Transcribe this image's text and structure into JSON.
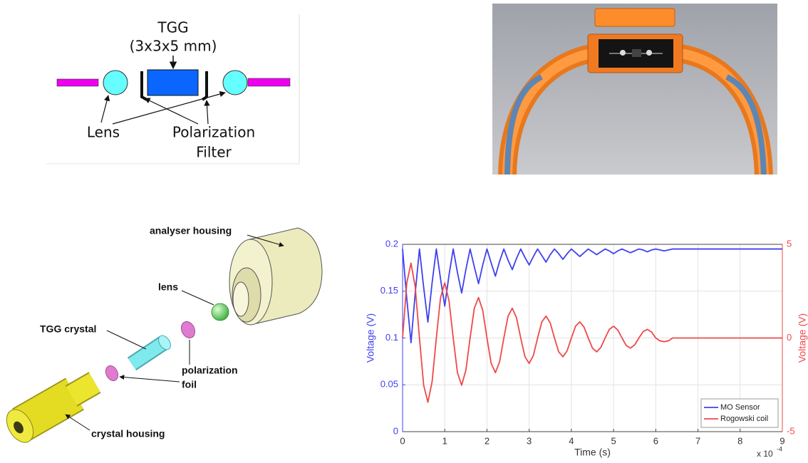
{
  "schematic": {
    "title": "TGG",
    "subtitle": "(3x3x5 mm)",
    "lens_label": "Lens",
    "filter_label_line1": "Polarization",
    "filter_label_line2": "Filter"
  },
  "exploded_view": {
    "analyser_label": "analyser housing",
    "lens_label": "lens",
    "crystal_label": "TGG crystal",
    "foil_label_line1": "polarization",
    "foil_label_line2": "foil",
    "housing_label": "crystal housing"
  },
  "chart_data": {
    "type": "line",
    "x_label": "Time (s)",
    "x_offset_label": "x 10",
    "x_offset_exponent": "-4",
    "y_label": "Voltage (V)",
    "y2_label": "Voltage (V)",
    "x": [
      0,
      0.1,
      0.2,
      0.3,
      0.4,
      0.5,
      0.6,
      0.7,
      0.8,
      0.9,
      1.0,
      1.1,
      1.2,
      1.3,
      1.4,
      1.5,
      1.6,
      1.7,
      1.8,
      1.9,
      2.0,
      2.1,
      2.2,
      2.3,
      2.4,
      2.5,
      2.6,
      2.7,
      2.8,
      2.9,
      3.0,
      3.1,
      3.2,
      3.3,
      3.4,
      3.5,
      3.6,
      3.7,
      3.8,
      3.9,
      4.0,
      4.1,
      4.2,
      4.3,
      4.4,
      4.5,
      4.6,
      4.7,
      4.8,
      4.9,
      5.0,
      5.1,
      5.2,
      5.3,
      5.4,
      5.5,
      5.6,
      5.7,
      5.8,
      5.9,
      6.0,
      6.1,
      6.2,
      6.3,
      6.4,
      7,
      7.5,
      8,
      8.5,
      9
    ],
    "series": [
      {
        "name": "MO Sensor",
        "color": "#4040f0",
        "axis": "y",
        "values": [
          0.195,
          0.142,
          0.095,
          0.148,
          0.195,
          0.154,
          0.117,
          0.159,
          0.195,
          0.163,
          0.134,
          0.167,
          0.195,
          0.17,
          0.148,
          0.173,
          0.195,
          0.176,
          0.158,
          0.178,
          0.195,
          0.18,
          0.166,
          0.182,
          0.195,
          0.183,
          0.173,
          0.185,
          0.195,
          0.186,
          0.178,
          0.187,
          0.195,
          0.188,
          0.181,
          0.189,
          0.195,
          0.19,
          0.184,
          0.19,
          0.195,
          0.191,
          0.187,
          0.191,
          0.195,
          0.192,
          0.189,
          0.192,
          0.195,
          0.193,
          0.19,
          0.193,
          0.195,
          0.193,
          0.191,
          0.193,
          0.195,
          0.194,
          0.192,
          0.194,
          0.195,
          0.194,
          0.193,
          0.194,
          0.195,
          0.195,
          0.195,
          0.195,
          0.195,
          0.195
        ]
      },
      {
        "name": "Rogowski coil",
        "color": "#f04848",
        "axis": "y2",
        "values": [
          0,
          2.94,
          4.0,
          2.72,
          0,
          -2.52,
          -3.43,
          -2.33,
          0,
          2.16,
          2.94,
          2.0,
          0,
          -1.85,
          -2.52,
          -1.72,
          0,
          1.59,
          2.16,
          1.47,
          0,
          -1.36,
          -1.85,
          -1.26,
          0,
          1.17,
          1.59,
          1.08,
          0,
          -1.0,
          -1.36,
          -0.93,
          0,
          0.86,
          1.17,
          0.8,
          0,
          -0.74,
          -1.0,
          -0.68,
          0,
          0.63,
          0.86,
          0.58,
          0,
          -0.54,
          -0.74,
          -0.5,
          0,
          0.46,
          0.63,
          0.43,
          0,
          -0.4,
          -0.54,
          -0.37,
          0,
          0.34,
          0.46,
          0.32,
          0,
          -0.15,
          -0.2,
          -0.15,
          0,
          0,
          0,
          0,
          0,
          0
        ]
      }
    ],
    "xlim": [
      0,
      9
    ],
    "xticks": [
      0,
      1,
      2,
      3,
      4,
      5,
      6,
      7,
      8,
      9
    ],
    "ylim": [
      0,
      0.2
    ],
    "yticks": [
      0,
      0.05,
      0.1,
      0.15,
      0.2
    ],
    "y2lim": [
      -5,
      5
    ],
    "y2ticks": [
      -5,
      0,
      5
    ],
    "grid": true,
    "legend": "lower right"
  }
}
